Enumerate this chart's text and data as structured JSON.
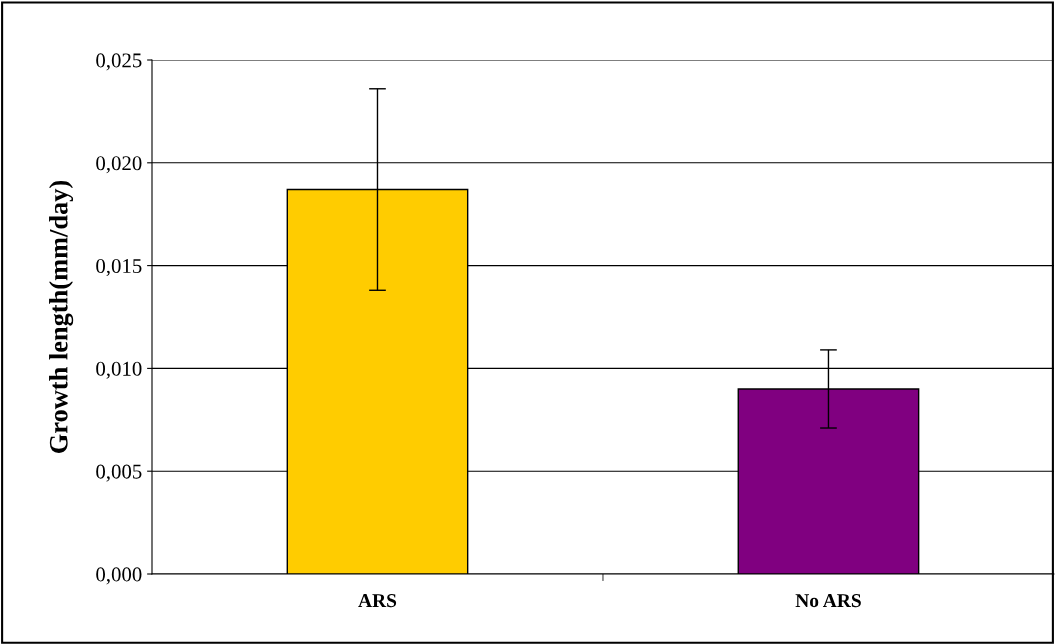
{
  "chart_data": {
    "type": "bar",
    "ylabel": "Growth length(mm/day)",
    "categories": [
      "ARS",
      "No ARS"
    ],
    "values": [
      0.0187,
      0.009
    ],
    "colors": [
      "#ffcc00",
      "#800080"
    ],
    "errors": [
      0.0049,
      0.0019
    ],
    "ylim": [
      0,
      0.025
    ],
    "yticks": [
      {
        "value": 0,
        "label": "0,000"
      },
      {
        "value": 0.005,
        "label": "0,005"
      },
      {
        "value": 0.01,
        "label": "0,010"
      },
      {
        "value": 0.015,
        "label": "0,015"
      },
      {
        "value": 0.02,
        "label": "0,020"
      },
      {
        "value": 0.025,
        "label": "0,025"
      }
    ],
    "grid": "y",
    "legend": false
  }
}
